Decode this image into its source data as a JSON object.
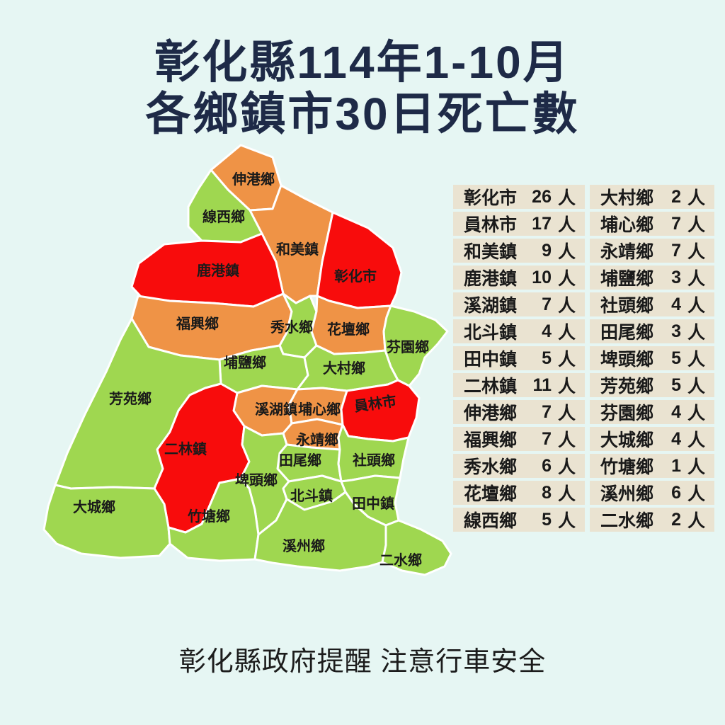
{
  "title": {
    "line1": "彰化縣114年1-10月",
    "line2": "各鄉鎮市30日死亡數"
  },
  "footer": "彰化縣政府提醒 注意行車安全",
  "unit": "人",
  "colors": {
    "background": "#e6f6f3",
    "title_text": "#1e2a47",
    "green": "#9fd750",
    "orange": "#ef9346",
    "red": "#f80c0c",
    "table_cell": "#eae3d1",
    "table_text": "#1a1a1a",
    "map_border": "#ffffff",
    "map_label": "#1a1a1a"
  },
  "table": {
    "left": [
      {
        "name": "彰化市",
        "value": 26
      },
      {
        "name": "員林市",
        "value": 17
      },
      {
        "name": "和美鎮",
        "value": 9
      },
      {
        "name": "鹿港鎮",
        "value": 10
      },
      {
        "name": "溪湖鎮",
        "value": 7
      },
      {
        "name": "北斗鎮",
        "value": 4
      },
      {
        "name": "田中鎮",
        "value": 5
      },
      {
        "name": "二林鎮",
        "value": 11
      },
      {
        "name": "伸港鄉",
        "value": 7
      },
      {
        "name": "福興鄉",
        "value": 7
      },
      {
        "name": "秀水鄉",
        "value": 6
      },
      {
        "name": "花壇鄉",
        "value": 8
      },
      {
        "name": "線西鄉",
        "value": 5
      }
    ],
    "right": [
      {
        "name": "大村鄉",
        "value": 2
      },
      {
        "name": "埔心鄉",
        "value": 7
      },
      {
        "name": "永靖鄉",
        "value": 7
      },
      {
        "name": "埔鹽鄉",
        "value": 3
      },
      {
        "name": "社頭鄉",
        "value": 4
      },
      {
        "name": "田尾鄉",
        "value": 3
      },
      {
        "name": "埤頭鄉",
        "value": 5
      },
      {
        "name": "芳苑鄉",
        "value": 5
      },
      {
        "name": "芬園鄉",
        "value": 4
      },
      {
        "name": "大城鄉",
        "value": 4
      },
      {
        "name": "竹塘鄉",
        "value": 1
      },
      {
        "name": "溪州鄉",
        "value": 6
      },
      {
        "name": "二水鄉",
        "value": 2
      }
    ]
  },
  "map": {
    "regions": [
      {
        "id": "shengang",
        "label": "伸港鄉",
        "level": "orange",
        "deaths": 7
      },
      {
        "id": "xianxi",
        "label": "線西鄉",
        "level": "green",
        "deaths": 5
      },
      {
        "id": "hemei",
        "label": "和美鎮",
        "level": "orange",
        "deaths": 9
      },
      {
        "id": "lugang",
        "label": "鹿港鎮",
        "level": "red",
        "deaths": 10
      },
      {
        "id": "zhanghua",
        "label": "彰化市",
        "level": "red",
        "deaths": 26
      },
      {
        "id": "fuxing",
        "label": "福興鄉",
        "level": "orange",
        "deaths": 7
      },
      {
        "id": "xiushui",
        "label": "秀水鄉",
        "level": "green",
        "deaths": 6
      },
      {
        "id": "huatan",
        "label": "花壇鄉",
        "level": "orange",
        "deaths": 8
      },
      {
        "id": "fenyuan",
        "label": "芬園鄉",
        "level": "green",
        "deaths": 4
      },
      {
        "id": "puyan",
        "label": "埔鹽鄉",
        "level": "green",
        "deaths": 3
      },
      {
        "id": "dacun",
        "label": "大村鄉",
        "level": "green",
        "deaths": 2
      },
      {
        "id": "fangyuan",
        "label": "芳苑鄉",
        "level": "green",
        "deaths": 5
      },
      {
        "id": "xihu",
        "label": "溪湖鎮",
        "level": "orange",
        "deaths": 7
      },
      {
        "id": "puxin",
        "label": "埔心鄉",
        "level": "orange",
        "deaths": 7
      },
      {
        "id": "yuanlin",
        "label": "員林市",
        "level": "red",
        "deaths": 17
      },
      {
        "id": "erlin",
        "label": "二林鎮",
        "level": "red",
        "deaths": 11
      },
      {
        "id": "yongjing",
        "label": "永靖鄉",
        "level": "orange",
        "deaths": 7
      },
      {
        "id": "tianwei",
        "label": "田尾鄉",
        "level": "green",
        "deaths": 3
      },
      {
        "id": "shetou",
        "label": "社頭鄉",
        "level": "green",
        "deaths": 4
      },
      {
        "id": "pitou",
        "label": "埤頭鄉",
        "level": "green",
        "deaths": 5
      },
      {
        "id": "beidou",
        "label": "北斗鎮",
        "level": "green",
        "deaths": 4
      },
      {
        "id": "tianzhong",
        "label": "田中鎮",
        "level": "green",
        "deaths": 5
      },
      {
        "id": "dacheng",
        "label": "大城鄉",
        "level": "green",
        "deaths": 4
      },
      {
        "id": "zhutang",
        "label": "竹塘鄉",
        "level": "green",
        "deaths": 1
      },
      {
        "id": "xizhou",
        "label": "溪州鄉",
        "level": "green",
        "deaths": 6
      },
      {
        "id": "ershui",
        "label": "二水鄉",
        "level": "green",
        "deaths": 2
      }
    ]
  }
}
